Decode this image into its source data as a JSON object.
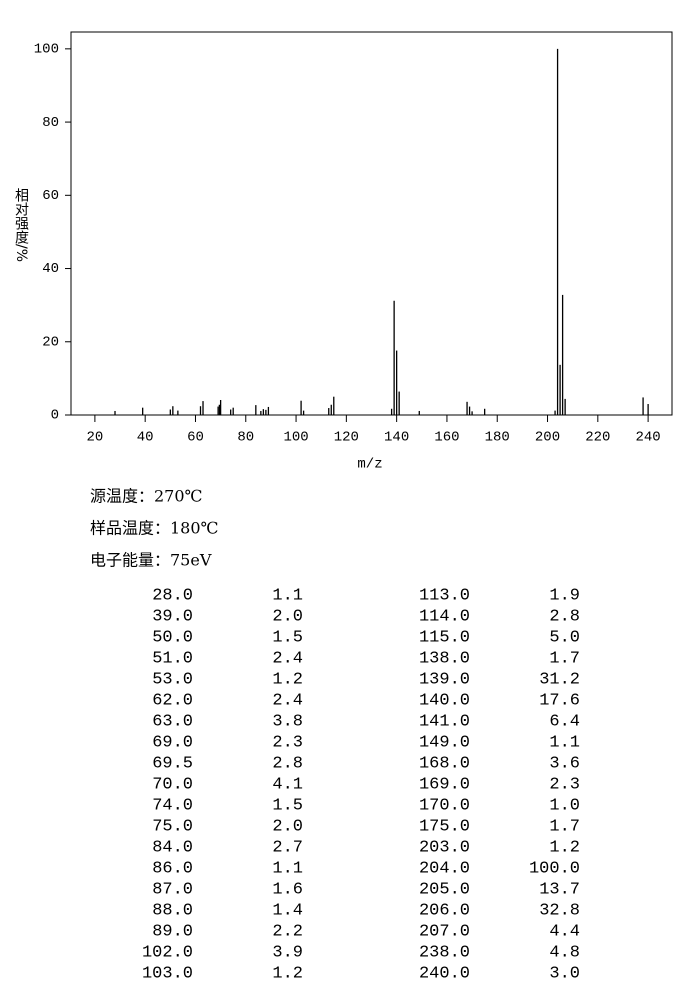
{
  "chart_data": {
    "type": "bar",
    "xlabel": "m/z",
    "ylabel": "相对强度/%",
    "x": [
      28,
      39,
      50,
      51,
      53,
      62,
      63,
      69,
      69.5,
      70,
      74,
      75,
      84,
      86,
      87,
      88,
      89,
      102,
      103,
      113,
      114,
      115,
      138,
      139,
      140,
      141,
      149,
      168,
      169,
      170,
      175,
      203,
      204,
      205,
      206,
      207,
      238,
      240
    ],
    "values": [
      1.1,
      2.0,
      1.5,
      2.4,
      1.2,
      2.4,
      3.8,
      2.3,
      2.8,
      4.1,
      1.5,
      2.0,
      2.7,
      1.1,
      1.6,
      1.4,
      2.2,
      3.9,
      1.2,
      1.9,
      2.8,
      5.0,
      1.7,
      31.2,
      17.6,
      6.4,
      1.1,
      3.6,
      2.3,
      1.0,
      1.7,
      1.2,
      100.0,
      13.7,
      32.8,
      4.4,
      4.8,
      3.0
    ],
    "color": "#000000",
    "xlim": [
      10.5,
      249.5
    ],
    "xticks": [
      20,
      40,
      60,
      80,
      100,
      120,
      140,
      160,
      180,
      200,
      220,
      240
    ],
    "ylim": [
      0,
      104.6
    ],
    "yticks": [
      0,
      20,
      40,
      60,
      80,
      100
    ]
  },
  "conditions": [
    "源温度：270℃",
    "样品温度：180℃",
    "电子能量：75eV"
  ],
  "peak_table": {
    "rows": [
      [
        "28.0",
        "1.1",
        "113.0",
        "1.9"
      ],
      [
        "39.0",
        "2.0",
        "114.0",
        "2.8"
      ],
      [
        "50.0",
        "1.5",
        "115.0",
        "5.0"
      ],
      [
        "51.0",
        "2.4",
        "138.0",
        "1.7"
      ],
      [
        "53.0",
        "1.2",
        "139.0",
        "31.2"
      ],
      [
        "62.0",
        "2.4",
        "140.0",
        "17.6"
      ],
      [
        "63.0",
        "3.8",
        "141.0",
        "6.4"
      ],
      [
        "69.0",
        "2.3",
        "149.0",
        "1.1"
      ],
      [
        "69.5",
        "2.8",
        "168.0",
        "3.6"
      ],
      [
        "70.0",
        "4.1",
        "169.0",
        "2.3"
      ],
      [
        "74.0",
        "1.5",
        "170.0",
        "1.0"
      ],
      [
        "75.0",
        "2.0",
        "175.0",
        "1.7"
      ],
      [
        "84.0",
        "2.7",
        "203.0",
        "1.2"
      ],
      [
        "86.0",
        "1.1",
        "204.0",
        "100.0"
      ],
      [
        "87.0",
        "1.6",
        "205.0",
        "13.7"
      ],
      [
        "88.0",
        "1.4",
        "206.0",
        "32.8"
      ],
      [
        "89.0",
        "2.2",
        "207.0",
        "4.4"
      ],
      [
        "102.0",
        "3.9",
        "238.0",
        "4.8"
      ],
      [
        "103.0",
        "1.2",
        "240.0",
        "3.0"
      ]
    ]
  }
}
